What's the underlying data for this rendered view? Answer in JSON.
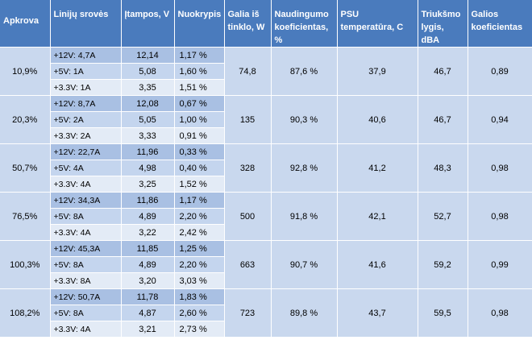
{
  "headers": [
    "Apkrova",
    "Linijų srovės",
    "Įtampos, V",
    "Nuokrypis",
    "Galia iš tinklo, W",
    "Naudingumo koeficientas, %",
    "PSU temperatūra, C",
    "Triukšmo lygis, dBA",
    "Galios koeficientas"
  ],
  "groups": [
    {
      "load": "10,9%",
      "power": "74,8",
      "efficiency": "87,6 %",
      "temp": "37,9",
      "noise": "46,7",
      "pf": "0,89",
      "lines": [
        {
          "line": "+12V: 4,7A",
          "voltage": "12,14",
          "deviation": "1,17 %"
        },
        {
          "line": "+5V: 1A",
          "voltage": "5,08",
          "deviation": "1,60 %"
        },
        {
          "line": "+3.3V: 1A",
          "voltage": "3,35",
          "deviation": "1,51 %"
        }
      ]
    },
    {
      "load": "20,3%",
      "power": "135",
      "efficiency": "90,3 %",
      "temp": "40,6",
      "noise": "46,7",
      "pf": "0,94",
      "lines": [
        {
          "line": "+12V: 8,7A",
          "voltage": "12,08",
          "deviation": "0,67 %"
        },
        {
          "line": "+5V: 2A",
          "voltage": "5,05",
          "deviation": "1,00 %"
        },
        {
          "line": "+3.3V: 2A",
          "voltage": "3,33",
          "deviation": "0,91 %"
        }
      ]
    },
    {
      "load": "50,7%",
      "power": "328",
      "efficiency": "92,8 %",
      "temp": "41,2",
      "noise": "48,3",
      "pf": "0,98",
      "lines": [
        {
          "line": "+12V: 22,7A",
          "voltage": "11,96",
          "deviation": "0,33 %"
        },
        {
          "line": "+5V: 4A",
          "voltage": "4,98",
          "deviation": "0,40 %"
        },
        {
          "line": "+3.3V: 4A",
          "voltage": "3,25",
          "deviation": "1,52 %"
        }
      ]
    },
    {
      "load": "76,5%",
      "power": "500",
      "efficiency": "91,8 %",
      "temp": "42,1",
      "noise": "52,7",
      "pf": "0,98",
      "lines": [
        {
          "line": "+12V: 34,3A",
          "voltage": "11,86",
          "deviation": "1,17 %"
        },
        {
          "line": "+5V: 8A",
          "voltage": "4,89",
          "deviation": "2,20 %"
        },
        {
          "line": "+3.3V: 4A",
          "voltage": "3,22",
          "deviation": "2,42 %"
        }
      ]
    },
    {
      "load": "100,3%",
      "power": "663",
      "efficiency": "90,7 %",
      "temp": "41,6",
      "noise": "59,2",
      "pf": "0,99",
      "lines": [
        {
          "line": "+12V: 45,3A",
          "voltage": "11,85",
          "deviation": "1,25 %"
        },
        {
          "line": "+5V: 8A",
          "voltage": "4,89",
          "deviation": "2,20 %"
        },
        {
          "line": "+3.3V: 8A",
          "voltage": "3,20",
          "deviation": "3,03 %"
        }
      ]
    },
    {
      "load": "108,2%",
      "power": "723",
      "efficiency": "89,8 %",
      "temp": "43,7",
      "noise": "59,5",
      "pf": "0,98",
      "lines": [
        {
          "line": "+12V: 50,7A",
          "voltage": "11,78",
          "deviation": "1,83 %"
        },
        {
          "line": "+5V: 8A",
          "voltage": "4,87",
          "deviation": "2,60 %"
        },
        {
          "line": "+3.3V: 4A",
          "voltage": "3,21",
          "deviation": "2,73 %"
        }
      ]
    }
  ]
}
